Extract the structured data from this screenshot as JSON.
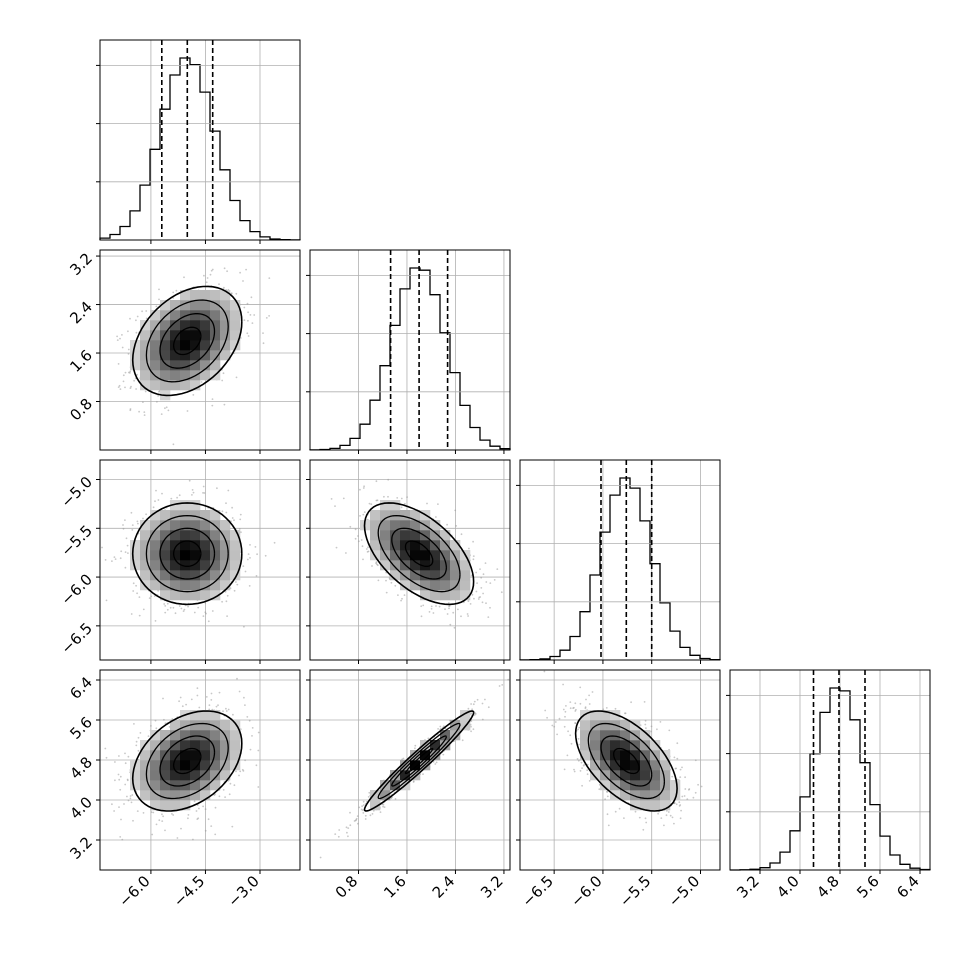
{
  "chart_data": {
    "type": "corner",
    "n_params": 4,
    "parameters": [
      {
        "label": "",
        "range": [
          -7.4,
          -1.9
        ],
        "ticks": [
          -6.0,
          -4.5,
          -3.0
        ],
        "tick_labels": [
          "−6.0",
          "−4.5",
          "−3.0"
        ],
        "mean": -5.0,
        "sigma": 0.75,
        "quantiles": [
          -5.7,
          -5.0,
          -4.3
        ]
      },
      {
        "label": "",
        "range": [
          0.0,
          3.3
        ],
        "ticks": [
          0.8,
          1.6,
          2.4,
          3.2
        ],
        "tick_labels": [
          "0.8",
          "1.6",
          "2.4",
          "3.2"
        ],
        "mean": 1.8,
        "sigma": 0.45,
        "quantiles": [
          1.33,
          1.8,
          2.27
        ]
      },
      {
        "label": "",
        "range": [
          -6.85,
          -4.8
        ],
        "ticks": [
          -6.5,
          -6.0,
          -5.5,
          -5.0
        ],
        "tick_labels": [
          "−6.5",
          "−6.0",
          "−5.5",
          "−5.0"
        ],
        "mean": -5.76,
        "sigma": 0.26,
        "quantiles": [
          -6.02,
          -5.76,
          -5.5
        ]
      },
      {
        "label": "",
        "range": [
          2.6,
          6.6
        ],
        "ticks": [
          3.2,
          4.0,
          4.8,
          5.6,
          6.4
        ],
        "tick_labels": [
          "3.2",
          "4.0",
          "4.8",
          "5.6",
          "6.4"
        ],
        "mean": 4.78,
        "sigma": 0.5,
        "quantiles": [
          4.27,
          4.78,
          5.3
        ]
      }
    ],
    "correlations": {
      "1-0": 0.35,
      "2-0": 0.0,
      "2-1": -0.55,
      "3-0": 0.35,
      "3-1": 0.97,
      "3-2": -0.55
    },
    "hist_bins": 20,
    "contour_levels_sigma": [
      0.5,
      1.0,
      1.5,
      2.0
    ],
    "grid": true,
    "colors": {
      "line": "#000000",
      "grid": "#b0b0b0",
      "scatter": "#9a9a9a"
    }
  }
}
